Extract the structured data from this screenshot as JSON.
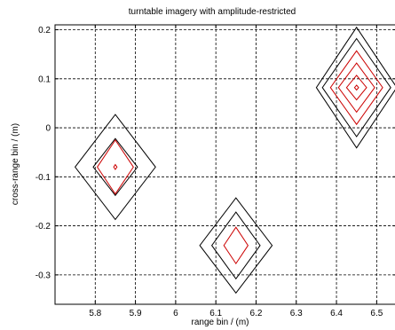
{
  "chart_data": {
    "type": "contour",
    "title": "turntable imagery with amplitude-restricted",
    "xlabel": "range bin / (m)",
    "ylabel": "cross-range bin / (m)",
    "xlim": [
      5.7,
      6.55
    ],
    "ylim": [
      -0.36,
      0.21
    ],
    "xticks": [
      5.8,
      5.9,
      6,
      6.1,
      6.2,
      6.3,
      6.4,
      6.5
    ],
    "xtick_labels": [
      "5.8",
      "5.9",
      "6",
      "6.1",
      "6.2",
      "6.3",
      "6.4",
      "6.5"
    ],
    "yticks": [
      -0.3,
      -0.2,
      -0.1,
      0,
      0.1,
      0.2
    ],
    "ytick_labels": [
      "-0.3",
      "-0.2",
      "-0.1",
      "0",
      "0.1",
      "0.2"
    ],
    "grid": true,
    "grid_style": "dashed",
    "contour_colors": [
      "#000000",
      "#cc0000"
    ],
    "targets": [
      {
        "center": [
          5.85,
          -0.08
        ],
        "contours": [
          {
            "dx": 0.1,
            "dy": 0.107,
            "color": "#000000"
          },
          {
            "dx": 0.055,
            "dy": 0.058,
            "color": "#000000"
          },
          {
            "dx": 0.045,
            "dy": 0.055,
            "color": "#cc0000"
          },
          {
            "dx": 0.004,
            "dy": 0.005,
            "color": "#cc0000"
          }
        ]
      },
      {
        "center": [
          6.15,
          -0.24
        ],
        "contours": [
          {
            "dx": 0.09,
            "dy": 0.097,
            "color": "#000000"
          },
          {
            "dx": 0.06,
            "dy": 0.068,
            "color": "#000000"
          },
          {
            "dx": 0.03,
            "dy": 0.037,
            "color": "#cc0000"
          }
        ]
      },
      {
        "center": [
          6.45,
          0.082
        ],
        "contours": [
          {
            "dx": 0.1,
            "dy": 0.123,
            "color": "#000000"
          },
          {
            "dx": 0.085,
            "dy": 0.1,
            "color": "#000000"
          },
          {
            "dx": 0.065,
            "dy": 0.075,
            "color": "#cc0000"
          },
          {
            "dx": 0.045,
            "dy": 0.05,
            "color": "#cc0000"
          },
          {
            "dx": 0.025,
            "dy": 0.025,
            "color": "#cc0000"
          },
          {
            "dx": 0.005,
            "dy": 0.005,
            "color": "#cc0000"
          }
        ]
      }
    ]
  }
}
